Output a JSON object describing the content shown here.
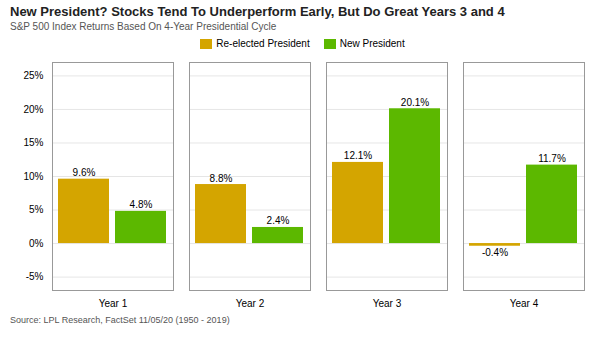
{
  "chart_data": {
    "type": "bar",
    "title": "New President? Stocks Tend To Underperform Early, But Do Great Years 3 and 4",
    "subtitle": "S&P 500 Index Returns Based On 4-Year Presidential Cycle",
    "source": "Source: LPL Research, FactSet 11/05/20 (1950 - 2019)",
    "categories": [
      "Year 1",
      "Year 2",
      "Year 3",
      "Year 4"
    ],
    "series": [
      {
        "name": "Re-elected President",
        "color": "#D4A500",
        "values": [
          9.6,
          8.8,
          12.1,
          -0.4
        ],
        "value_labels": [
          "9.6%",
          "8.8%",
          "12.1%",
          "-0.4%"
        ]
      },
      {
        "name": "New President",
        "color": "#5CB800",
        "values": [
          4.8,
          2.4,
          20.1,
          11.7
        ],
        "value_labels": [
          "4.8%",
          "2.4%",
          "20.1%",
          "11.7%"
        ]
      }
    ],
    "ylim": [
      -7,
      27
    ],
    "yticks": [
      {
        "value": -5,
        "label": "-5%"
      },
      {
        "value": 0,
        "label": "0%"
      },
      {
        "value": 5,
        "label": "5%"
      },
      {
        "value": 10,
        "label": "10%"
      },
      {
        "value": 15,
        "label": "15%"
      },
      {
        "value": 20,
        "label": "20%"
      },
      {
        "value": 25,
        "label": "25%"
      }
    ],
    "grid": true,
    "legend": "top",
    "data_labels": true
  }
}
